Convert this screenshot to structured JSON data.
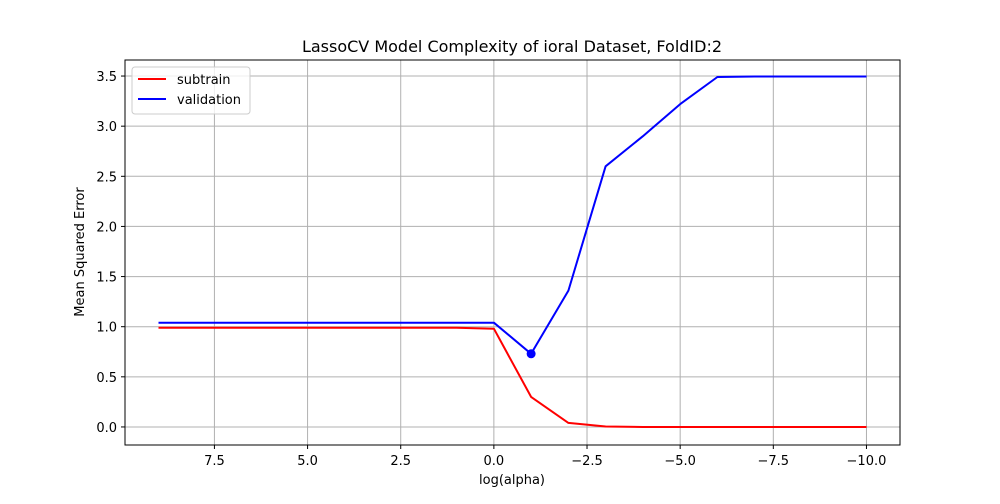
{
  "chart_data": {
    "type": "line",
    "title": "LassoCV Model Complexity of ioral Dataset, FoldID:2",
    "xlabel": "log(alpha)",
    "ylabel": "Mean Squared Error",
    "xlim": [
      9.9,
      -10.9
    ],
    "ylim": [
      -0.18,
      3.66
    ],
    "x_inverted": true,
    "grid": true,
    "legend_position": "upper-left",
    "x_ticks": [
      7.5,
      5.0,
      2.5,
      0.0,
      -2.5,
      -5.0,
      -7.5,
      -10.0
    ],
    "x_tick_labels": [
      "7.5",
      "5.0",
      "2.5",
      "0.0",
      "−2.5",
      "−5.0",
      "−7.5",
      "−10.0"
    ],
    "y_ticks": [
      0.0,
      0.5,
      1.0,
      1.5,
      2.0,
      2.5,
      3.0,
      3.5
    ],
    "y_tick_labels": [
      "0.0",
      "0.5",
      "1.0",
      "1.5",
      "2.0",
      "2.5",
      "3.0",
      "3.5"
    ],
    "series": [
      {
        "name": "subtrain",
        "color": "#ff0000",
        "points": [
          [
            9,
            0.99
          ],
          [
            8,
            0.99
          ],
          [
            7,
            0.99
          ],
          [
            6,
            0.99
          ],
          [
            5,
            0.99
          ],
          [
            4,
            0.99
          ],
          [
            3,
            0.99
          ],
          [
            2,
            0.99
          ],
          [
            1,
            0.99
          ],
          [
            0,
            0.98
          ],
          [
            -1,
            0.3
          ],
          [
            -2,
            0.04
          ],
          [
            -3,
            0.005
          ],
          [
            -4,
            0.0
          ],
          [
            -5,
            0.0
          ],
          [
            -6,
            0.0
          ],
          [
            -7,
            0.0
          ],
          [
            -8,
            0.0
          ],
          [
            -9,
            0.0
          ],
          [
            -10,
            0.0
          ]
        ]
      },
      {
        "name": "validation",
        "color": "#0000ff",
        "points": [
          [
            9,
            1.04
          ],
          [
            8,
            1.04
          ],
          [
            7,
            1.04
          ],
          [
            6,
            1.04
          ],
          [
            5,
            1.04
          ],
          [
            4,
            1.04
          ],
          [
            3,
            1.04
          ],
          [
            2,
            1.04
          ],
          [
            1,
            1.04
          ],
          [
            0,
            1.04
          ],
          [
            -1,
            0.73
          ],
          [
            -2,
            1.36
          ],
          [
            -3,
            2.6
          ],
          [
            -4,
            2.9
          ],
          [
            -5,
            3.22
          ],
          [
            -6,
            3.49
          ],
          [
            -7,
            3.495
          ],
          [
            -8,
            3.495
          ],
          [
            -9,
            3.495
          ],
          [
            -10,
            3.495
          ]
        ]
      }
    ],
    "marker": {
      "series": "validation",
      "x": -1,
      "y": 0.73,
      "color": "#0000ff"
    }
  }
}
